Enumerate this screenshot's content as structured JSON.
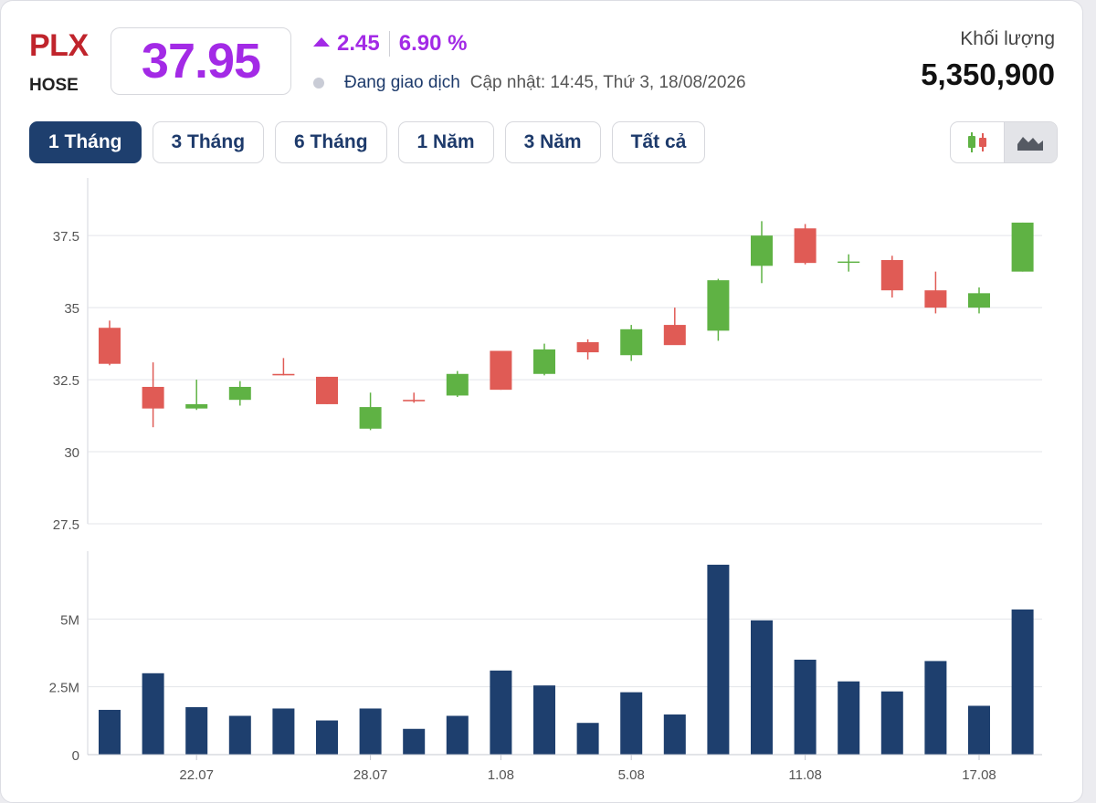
{
  "header": {
    "ticker": "PLX",
    "exchange": "HOSE",
    "price": "37.95",
    "change": "2.45",
    "change_pct": "6.90 %",
    "status": "Đang giao dịch",
    "updated": "Cập nhật: 14:45, Thứ 3, 18/08/2026",
    "volume_label": "Khối lượng",
    "volume_value": "5,350,900"
  },
  "tabs": [
    "1 Tháng",
    "3 Tháng",
    "6 Tháng",
    "1 Năm",
    "3 Năm",
    "Tất cả"
  ],
  "active_tab": "1 Tháng",
  "chart_toggle": {
    "options": [
      "candlestick-icon",
      "area-chart-icon"
    ],
    "selected": "area-chart-icon"
  },
  "colors": {
    "accent": "#a32ae6",
    "ticker": "#c0242c",
    "up": "#5fb244",
    "down": "#e05b55",
    "volume": "#1e3f6e",
    "active_tab": "#1e3f6e"
  },
  "chart_data": [
    {
      "type": "candlestick",
      "yticks": [
        27.5,
        30,
        32.5,
        35,
        37.5
      ],
      "ylim": [
        27.5,
        39.5
      ],
      "grid": true,
      "xtick_labels": [
        {
          "index": 2,
          "label": "22.07"
        },
        {
          "index": 6,
          "label": "28.07"
        },
        {
          "index": 9,
          "label": "1.08"
        },
        {
          "index": 12,
          "label": "5.08"
        },
        {
          "index": 16,
          "label": "11.08"
        },
        {
          "index": 20,
          "label": "17.08"
        }
      ],
      "candles": [
        {
          "open": 34.3,
          "high": 34.55,
          "low": 33.0,
          "close": 33.05
        },
        {
          "open": 32.25,
          "high": 33.1,
          "low": 30.85,
          "close": 31.5
        },
        {
          "open": 31.5,
          "high": 32.5,
          "low": 31.45,
          "close": 31.65
        },
        {
          "open": 31.8,
          "high": 32.45,
          "low": 31.6,
          "close": 32.25
        },
        {
          "open": 32.7,
          "high": 33.25,
          "low": 32.65,
          "close": 32.65
        },
        {
          "open": 32.6,
          "high": 32.6,
          "low": 31.65,
          "close": 31.65
        },
        {
          "open": 30.8,
          "high": 32.05,
          "low": 30.75,
          "close": 31.55
        },
        {
          "open": 31.8,
          "high": 32.05,
          "low": 31.7,
          "close": 31.75
        },
        {
          "open": 31.95,
          "high": 32.8,
          "low": 31.9,
          "close": 32.7
        },
        {
          "open": 33.5,
          "high": 33.5,
          "low": 32.15,
          "close": 32.15
        },
        {
          "open": 32.7,
          "high": 33.75,
          "low": 32.65,
          "close": 33.55
        },
        {
          "open": 33.8,
          "high": 33.9,
          "low": 33.2,
          "close": 33.45
        },
        {
          "open": 33.35,
          "high": 34.4,
          "low": 33.15,
          "close": 34.25
        },
        {
          "open": 34.4,
          "high": 35.0,
          "low": 33.75,
          "close": 33.7
        },
        {
          "open": 34.2,
          "high": 36.0,
          "low": 33.85,
          "close": 35.95
        },
        {
          "open": 36.45,
          "high": 38.0,
          "low": 35.85,
          "close": 37.5
        },
        {
          "open": 37.75,
          "high": 37.9,
          "low": 36.5,
          "close": 36.55
        },
        {
          "open": 36.6,
          "high": 36.85,
          "low": 36.25,
          "close": 36.6
        },
        {
          "open": 36.65,
          "high": 36.8,
          "low": 35.35,
          "close": 35.6
        },
        {
          "open": 35.6,
          "high": 36.25,
          "low": 34.8,
          "close": 35.0
        },
        {
          "open": 35.0,
          "high": 35.7,
          "low": 34.8,
          "close": 35.5
        },
        {
          "open": 36.25,
          "high": 37.95,
          "low": 36.25,
          "close": 37.95
        }
      ]
    },
    {
      "type": "bar",
      "title": "Khối lượng",
      "yticks": [
        {
          "value": 0,
          "label": "0"
        },
        {
          "value": 2500000,
          "label": "2.5M"
        },
        {
          "value": 5000000,
          "label": "5M"
        }
      ],
      "ylim": [
        0,
        7500000
      ],
      "grid": true,
      "values": [
        1650000,
        3000000,
        1750000,
        1430000,
        1700000,
        1260000,
        1700000,
        950000,
        1430000,
        3100000,
        2550000,
        1170000,
        2300000,
        1480000,
        7000000,
        4950000,
        3500000,
        2700000,
        2330000,
        3450000,
        1800000,
        5350900
      ]
    }
  ]
}
